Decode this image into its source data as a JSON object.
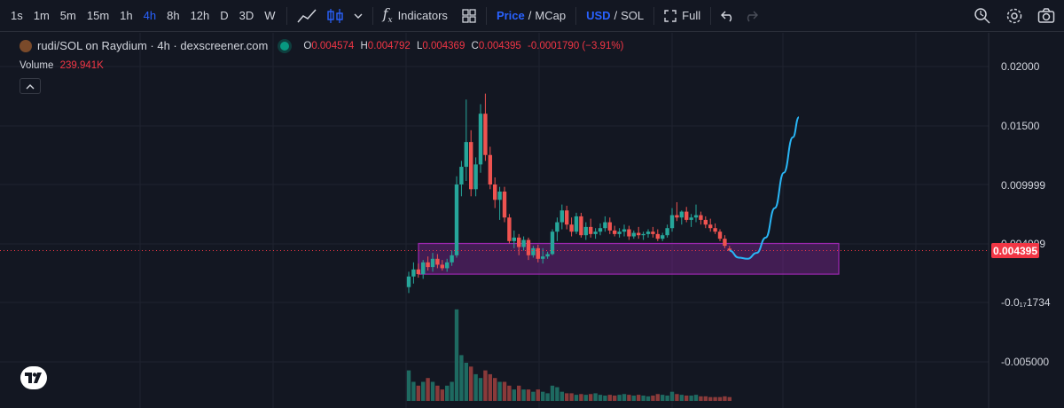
{
  "toolbar": {
    "timeframes": [
      "1s",
      "1m",
      "5m",
      "15m",
      "1h",
      "4h",
      "8h",
      "12h",
      "D",
      "3D",
      "W"
    ],
    "active_timeframe": "4h",
    "indicators_label": "Indicators",
    "price_label": "Price",
    "mcap_label": "MCap",
    "usd_label": "USD",
    "sol_label": "SOL",
    "full_label": "Full",
    "slash": "/"
  },
  "legend": {
    "symbol": "rudi/SOL on Raydium · 4h · dexscreener.com",
    "o_label": "O",
    "o": "0.004574",
    "h_label": "H",
    "h": "0.004792",
    "l_label": "L",
    "l": "0.004369",
    "c_label": "C",
    "c": "0.004395",
    "change": "-0.0001790 (−3.91%)",
    "volume_label": "Volume",
    "volume": "239.941K"
  },
  "price_axis": {
    "ticks": [
      "0.02000",
      "0.01500",
      "0.009999",
      "0.004999",
      "-0.0₁₇1734",
      "-0.005000"
    ],
    "current_price": "0.004395"
  },
  "colors": {
    "background": "#131722",
    "up": "#26a69a",
    "down": "#ef5350",
    "zone": "#9c27b0",
    "projection": "#29b6f6",
    "price_label": "#f23645",
    "accent": "#2962ff"
  },
  "chart_data": {
    "type": "candlestick",
    "note_units": "price in SOL",
    "candles": [
      [
        0.0013,
        0.0026,
        0.0008,
        0.0022
      ],
      [
        0.0022,
        0.0034,
        0.0016,
        0.0028
      ],
      [
        0.0028,
        0.0033,
        0.0021,
        0.0024
      ],
      [
        0.0024,
        0.0036,
        0.002,
        0.0034
      ],
      [
        0.0034,
        0.0039,
        0.0027,
        0.003
      ],
      [
        0.003,
        0.0042,
        0.0026,
        0.0037
      ],
      [
        0.0037,
        0.0041,
        0.0029,
        0.0032
      ],
      [
        0.0032,
        0.0036,
        0.0027,
        0.0029
      ],
      [
        0.0029,
        0.0037,
        0.0026,
        0.0034
      ],
      [
        0.0034,
        0.0044,
        0.0031,
        0.004
      ],
      [
        0.004,
        0.0107,
        0.0038,
        0.01
      ],
      [
        0.01,
        0.012,
        0.009,
        0.0115
      ],
      [
        0.0115,
        0.0172,
        0.0103,
        0.0136
      ],
      [
        0.0136,
        0.0146,
        0.009,
        0.0096
      ],
      [
        0.0096,
        0.0123,
        0.009,
        0.0117
      ],
      [
        0.0117,
        0.0168,
        0.011,
        0.016
      ],
      [
        0.016,
        0.0177,
        0.012,
        0.0125
      ],
      [
        0.0125,
        0.0132,
        0.0096,
        0.01
      ],
      [
        0.01,
        0.0106,
        0.008,
        0.0087
      ],
      [
        0.0087,
        0.0098,
        0.007,
        0.0094
      ],
      [
        0.0094,
        0.0098,
        0.0068,
        0.0072
      ],
      [
        0.0072,
        0.0075,
        0.005,
        0.0052
      ],
      [
        0.0052,
        0.0061,
        0.0046,
        0.0055
      ],
      [
        0.0055,
        0.0058,
        0.004,
        0.0047
      ],
      [
        0.0047,
        0.0056,
        0.0044,
        0.0053
      ],
      [
        0.0053,
        0.0055,
        0.0036,
        0.004
      ],
      [
        0.004,
        0.0048,
        0.0038,
        0.0046
      ],
      [
        0.0046,
        0.0049,
        0.0034,
        0.0037
      ],
      [
        0.0037,
        0.0046,
        0.0033,
        0.0039
      ],
      [
        0.0039,
        0.0043,
        0.0037,
        0.0041
      ],
      [
        0.0041,
        0.0062,
        0.004,
        0.006
      ],
      [
        0.006,
        0.0072,
        0.0052,
        0.0068
      ],
      [
        0.0068,
        0.0083,
        0.0062,
        0.0078
      ],
      [
        0.0078,
        0.0082,
        0.0062,
        0.0066
      ],
      [
        0.0066,
        0.0072,
        0.0056,
        0.006
      ],
      [
        0.006,
        0.0076,
        0.0058,
        0.0073
      ],
      [
        0.0073,
        0.0076,
        0.0055,
        0.0057
      ],
      [
        0.0057,
        0.0068,
        0.0053,
        0.0064
      ],
      [
        0.0064,
        0.0071,
        0.0055,
        0.0058
      ],
      [
        0.0058,
        0.0063,
        0.0054,
        0.006
      ],
      [
        0.006,
        0.0067,
        0.0057,
        0.0063
      ],
      [
        0.0063,
        0.0073,
        0.006,
        0.0068
      ],
      [
        0.0068,
        0.0072,
        0.0058,
        0.0061
      ],
      [
        0.0061,
        0.0065,
        0.0056,
        0.0058
      ],
      [
        0.0058,
        0.0063,
        0.0055,
        0.006
      ],
      [
        0.006,
        0.0066,
        0.0056,
        0.0062
      ],
      [
        0.0062,
        0.0065,
        0.0053,
        0.0056
      ],
      [
        0.0056,
        0.0061,
        0.0054,
        0.0059
      ],
      [
        0.0059,
        0.0064,
        0.0054,
        0.0057
      ],
      [
        0.0057,
        0.006,
        0.0053,
        0.0058
      ],
      [
        0.0058,
        0.0062,
        0.0055,
        0.006
      ],
      [
        0.006,
        0.0064,
        0.0055,
        0.0058
      ],
      [
        0.0058,
        0.0062,
        0.0052,
        0.0054
      ],
      [
        0.0054,
        0.0059,
        0.0052,
        0.0057
      ],
      [
        0.0057,
        0.0066,
        0.0055,
        0.0063
      ],
      [
        0.0063,
        0.008,
        0.006,
        0.0074
      ],
      [
        0.0074,
        0.0085,
        0.0069,
        0.0072
      ],
      [
        0.0072,
        0.0078,
        0.0066,
        0.0077
      ],
      [
        0.0077,
        0.0081,
        0.0068,
        0.007
      ],
      [
        0.007,
        0.0075,
        0.0064,
        0.0072
      ],
      [
        0.0072,
        0.0083,
        0.0068,
        0.0074
      ],
      [
        0.0074,
        0.0077,
        0.0066,
        0.007
      ],
      [
        0.007,
        0.0073,
        0.0063,
        0.0066
      ],
      [
        0.0066,
        0.0071,
        0.006,
        0.0063
      ],
      [
        0.0063,
        0.0067,
        0.0058,
        0.006
      ],
      [
        0.006,
        0.0062,
        0.0052,
        0.0054
      ],
      [
        0.0054,
        0.0057,
        0.0046,
        0.0048
      ],
      [
        0.00457,
        0.00479,
        0.00437,
        0.0044
      ]
    ],
    "volume": [
      4,
      2.5,
      2,
      2.5,
      3,
      2.5,
      2,
      1.5,
      2,
      2.5,
      12,
      6,
      5,
      4.5,
      3.5,
      3,
      4,
      3.5,
      3,
      2.5,
      2.5,
      2,
      1.5,
      2,
      1.5,
      1.5,
      1.2,
      1.5,
      1.2,
      1,
      2,
      1.8,
      1.2,
      1,
      1,
      0.8,
      0.9,
      0.8,
      0.9,
      1,
      0.8,
      0.7,
      0.8,
      0.7,
      0.8,
      0.9,
      0.8,
      0.7,
      0.8,
      0.7,
      0.6,
      0.7,
      0.9,
      0.8,
      0.7,
      1.2,
      0.9,
      0.8,
      0.7,
      0.7,
      0.8,
      0.6,
      0.6,
      0.5,
      0.5,
      0.5,
      0.6,
      0.5
    ],
    "support_zone": [
      0.0024,
      0.005
    ],
    "projection": [
      [
        0.0044,
        0
      ],
      [
        0.0038,
        3
      ],
      [
        0.0037,
        6
      ],
      [
        0.0042,
        9
      ],
      [
        0.0055,
        12
      ],
      [
        0.008,
        15
      ],
      [
        0.011,
        18
      ],
      [
        0.014,
        21
      ],
      [
        0.0157,
        23
      ]
    ],
    "ylim": [
      -0.0055,
      0.0215
    ]
  }
}
